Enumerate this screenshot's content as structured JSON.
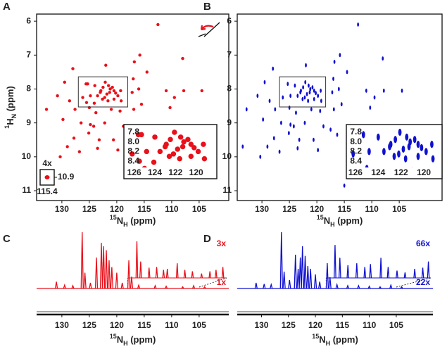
{
  "chart_data": [
    {
      "panel": "A",
      "type": "scatter",
      "marker": "circle",
      "color": "#e8101a",
      "xlim": [
        134.6,
        99.6
      ],
      "ylim": [
        5.79,
        11.29
      ],
      "xticks": [
        130,
        125,
        120,
        115,
        110,
        105
      ],
      "yticks": [
        6,
        7,
        8,
        9,
        10,
        11
      ],
      "xlabel": [
        "15",
        "N",
        "H",
        " (ppm)"
      ],
      "ylabel": [
        "1",
        "H",
        "N",
        " (ppm)"
      ],
      "inset": {
        "xlim": [
          127,
          118
        ],
        "ylim": [
          7.64,
          8.53
        ],
        "xticks": [
          126,
          124,
          122,
          120
        ],
        "yticks": [
          7.8,
          8.0,
          8.2,
          8.4
        ]
      },
      "folded": {
        "label": "4x",
        "x": 115.4,
        "y": 10.9
      },
      "series": [
        {
          "x": [
            112.5,
            108,
            115.8,
            116.8,
            122,
            128,
            114.5,
            117,
            129.5,
            125.3,
            124,
            122.5,
            121.2,
            120.5,
            123,
            121.8,
            119.8,
            122.2,
            124.8,
            126.2,
            120.5,
            117.2,
            116,
            111,
            107.8,
            104.5,
            109.5,
            128.6,
            130.8,
            127.6,
            125,
            123.8,
            121,
            119.4,
            116.9,
            115.5,
            110.3,
            132.8,
            129.8,
            126.5,
            124.2,
            122.2,
            118.8,
            117.5,
            114.3,
            125.1,
            127.8,
            120.6,
            116.3,
            112.2,
            129,
            123.5,
            119.8,
            126.8,
            130.3,
            123.2,
            124.8,
            125.6,
            122.1,
            121.5,
            120.8,
            122.9,
            121.3,
            120.2,
            119.3,
            123.5,
            122.6,
            121.6,
            125.5,
            124.1,
            119.2
          ],
          "values": [
            6.1,
            7.1,
            7.0,
            7.2,
            7.3,
            7.4,
            7.5,
            7.7,
            7.8,
            7.85,
            7.9,
            7.95,
            8.0,
            8.05,
            8.1,
            8.15,
            8.2,
            8.25,
            8.2,
            8.25,
            8.3,
            8.1,
            8.0,
            8.05,
            8.05,
            8.05,
            8.25,
            8.35,
            8.2,
            8.6,
            8.55,
            8.7,
            8.6,
            8.65,
            8.6,
            8.45,
            8.55,
            8.6,
            8.9,
            9.0,
            9.1,
            9.0,
            9.1,
            9.2,
            9.1,
            9.3,
            9.45,
            9.5,
            9.35,
            9.3,
            9.7,
            9.75,
            9.8,
            9.85,
            10.0,
            9.5,
            9.05,
            7.85,
            7.8,
            7.9,
            7.95,
            8.05,
            8.1,
            8.12,
            8.05,
            8.2,
            8.3,
            8.35,
            8.4,
            8.42,
            8.35
          ]
        }
      ]
    },
    {
      "panel": "B",
      "type": "scatter",
      "marker": "ellipse",
      "color": "#1010d0",
      "xlim": [
        134.5,
        97.2
      ],
      "ylim": [
        5.79,
        11.29
      ],
      "xticks": [
        130,
        125,
        120,
        115,
        110,
        105
      ],
      "yticks": [
        6,
        7,
        8,
        9,
        10,
        11
      ],
      "xlabel": [
        "15",
        "N",
        "H",
        " (ppm)"
      ],
      "inset": {
        "xlim": [
          126.8,
          118.4
        ],
        "ylim": [
          7.64,
          8.53
        ],
        "xticks": [
          126,
          124,
          122,
          120
        ],
        "yticks": [
          7.8,
          8.0,
          8.2,
          8.4
        ]
      },
      "series": [
        {
          "x": [
            112.5,
            108,
            115.8,
            116.8,
            122,
            128,
            114.5,
            117,
            129.5,
            125.3,
            124,
            122.5,
            121.2,
            120.5,
            123,
            121.8,
            119.8,
            122.2,
            124.8,
            126.2,
            120.5,
            117.2,
            116,
            111,
            107.8,
            104.5,
            109.5,
            128.6,
            130.8,
            127.6,
            125,
            123.8,
            121,
            119.4,
            116.9,
            115.5,
            110.3,
            132.8,
            129.8,
            126.5,
            124.2,
            122.2,
            118.8,
            117.5,
            114.3,
            125.1,
            127.8,
            120.6,
            116.3,
            112.2,
            129,
            123.5,
            119.8,
            126.8,
            130.3,
            123.2,
            124.8,
            122.1,
            121.5,
            120.8,
            122.9,
            121.3,
            120.2,
            119.3,
            123.5,
            122.6,
            121.6,
            119.2,
            115,
            133.5
          ],
          "values": [
            6.1,
            7.1,
            7.0,
            7.2,
            7.3,
            7.4,
            7.5,
            7.7,
            7.8,
            7.85,
            7.9,
            7.95,
            8.0,
            8.05,
            8.1,
            8.15,
            8.2,
            8.25,
            8.2,
            8.25,
            8.3,
            8.1,
            8.0,
            8.05,
            8.05,
            8.05,
            8.25,
            8.35,
            8.2,
            8.6,
            8.55,
            8.7,
            8.6,
            8.65,
            8.6,
            8.45,
            8.55,
            8.6,
            8.9,
            9.0,
            9.1,
            9.0,
            9.1,
            9.2,
            9.1,
            9.3,
            9.45,
            9.5,
            9.35,
            9.3,
            9.7,
            9.75,
            9.8,
            9.85,
            10.0,
            9.5,
            9.05,
            7.8,
            7.9,
            7.95,
            8.05,
            8.1,
            8.12,
            8.05,
            8.2,
            8.3,
            8.35,
            8.35,
            10.85,
            9.7
          ]
        }
      ]
    },
    {
      "panel": "C",
      "type": "spectrum",
      "color": "#e8101a",
      "xlim": [
        134.6,
        99.6
      ],
      "ylim": [
        0,
        100
      ],
      "xticks": [
        130,
        125,
        120,
        115,
        110,
        105
      ],
      "xlabel": [
        "15",
        "N",
        "H",
        " (ppm)"
      ],
      "inset_xlim": [
        118,
        105
      ],
      "series": [
        {
          "name": "1x",
          "x": [
            126.3,
            125.8,
            124.8,
            123.7,
            122.8,
            122.4,
            121.9,
            121.4,
            120.9,
            120.0,
            119,
            117.8,
            117.3,
            131,
            129.5,
            128,
            116,
            113,
            111,
            108,
            106,
            104
          ],
          "values": [
            100,
            28,
            10,
            55,
            81,
            75,
            68,
            50,
            38,
            28,
            10,
            50,
            21,
            12,
            6,
            5,
            6,
            5,
            4,
            3,
            5,
            3
          ]
        },
        {
          "name": "3x",
          "inset": true,
          "x": [
            116.8,
            116.3,
            115.2,
            114.2,
            113.3,
            112.8,
            111.5,
            110.5,
            109.5,
            108.3,
            107.2,
            106.4,
            105.5
          ],
          "values": [
            100,
            45,
            28,
            30,
            22,
            25,
            40,
            22,
            18,
            12,
            18,
            22,
            30
          ]
        }
      ]
    },
    {
      "panel": "D",
      "type": "spectrum",
      "color": "#1010d0",
      "xlim": [
        134.5,
        98.2
      ],
      "ylim": [
        0,
        100
      ],
      "xticks": [
        130,
        125,
        120,
        115,
        110,
        105
      ],
      "xlabel": [
        "15",
        "N",
        "H",
        " (ppm)"
      ],
      "inset_xlim": [
        118,
        105
      ],
      "series": [
        {
          "name": "22x",
          "x": [
            126.3,
            125.8,
            124.8,
            123.7,
            123.2,
            122.8,
            122.4,
            121.9,
            121.4,
            120.9,
            120.0,
            119.2,
            117.8,
            117.3,
            131,
            129.5,
            128.2,
            116,
            114,
            112,
            110,
            108,
            106,
            104
          ],
          "values": [
            100,
            30,
            15,
            60,
            35,
            55,
            75,
            58,
            40,
            35,
            25,
            12,
            45,
            20,
            10,
            8,
            7,
            7,
            5,
            5,
            4,
            3,
            6,
            3
          ]
        },
        {
          "name": "66x",
          "inset": true,
          "x": [
            116.9,
            116.3,
            115.3,
            114.2,
            113.2,
            112.5,
            111.2,
            110.3,
            109.2,
            108.2,
            107,
            106,
            105.3
          ],
          "values": [
            90,
            55,
            35,
            40,
            30,
            38,
            55,
            30,
            20,
            15,
            25,
            28,
            45
          ]
        }
      ]
    }
  ]
}
